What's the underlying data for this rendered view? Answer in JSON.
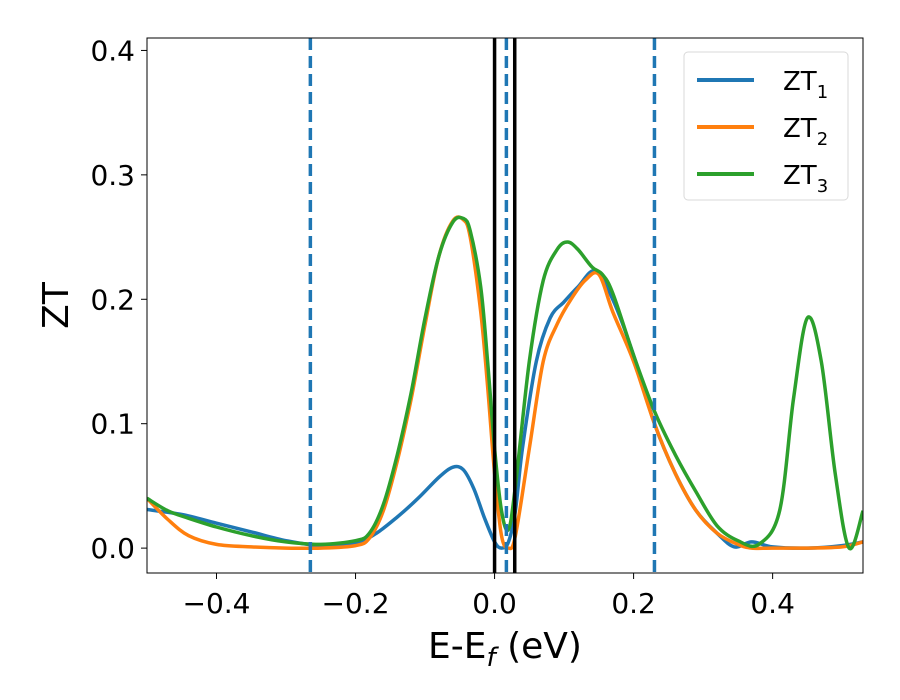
{
  "chart_data": {
    "type": "line",
    "xlabel": "E-E",
    "xlabel_sub": "f",
    "xlabel_unit": " (eV)",
    "ylabel": "ZT",
    "xlim": [
      -0.5,
      0.53
    ],
    "ylim": [
      -0.02,
      0.41
    ],
    "xticks": [
      -0.4,
      -0.2,
      0.0,
      0.2,
      0.4
    ],
    "xtick_labels": [
      "−0.4",
      "−0.2",
      "0.0",
      "0.2",
      "0.4"
    ],
    "yticks": [
      0.0,
      0.1,
      0.2,
      0.3,
      0.4
    ],
    "ytick_labels": [
      "0.0",
      "0.1",
      "0.2",
      "0.3",
      "0.4"
    ],
    "grid": false,
    "legend_position": "top-right",
    "vlines_solid": [
      0.0,
      0.029
    ],
    "vlines_dashed": [
      -0.265,
      0.017,
      0.23
    ],
    "colors": {
      "solid_vline": "#000000",
      "dashed_vline": "#1f77b4"
    },
    "series": [
      {
        "name": "ZT",
        "subscript": "1",
        "color": "#1f77b4",
        "x": [
          -0.5,
          -0.45,
          -0.4,
          -0.35,
          -0.3,
          -0.25,
          -0.2,
          -0.17,
          -0.14,
          -0.11,
          -0.08,
          -0.06,
          -0.045,
          -0.03,
          -0.015,
          0.0,
          0.01,
          0.02,
          0.03,
          0.04,
          0.06,
          0.08,
          0.1,
          0.12,
          0.145,
          0.17,
          0.2,
          0.23,
          0.26,
          0.29,
          0.32,
          0.345,
          0.37,
          0.4,
          0.45,
          0.5,
          0.53
        ],
        "y": [
          0.031,
          0.027,
          0.02,
          0.013,
          0.006,
          0.002,
          0.004,
          0.012,
          0.025,
          0.04,
          0.057,
          0.065,
          0.063,
          0.048,
          0.025,
          0.005,
          0.0,
          0.005,
          0.03,
          0.08,
          0.15,
          0.185,
          0.198,
          0.21,
          0.223,
          0.2,
          0.155,
          0.1,
          0.06,
          0.03,
          0.012,
          0.001,
          0.005,
          0.001,
          0.0,
          0.002,
          0.005
        ]
      },
      {
        "name": "ZT",
        "subscript": "2",
        "color": "#ff7f0e",
        "x": [
          -0.5,
          -0.47,
          -0.44,
          -0.4,
          -0.35,
          -0.3,
          -0.25,
          -0.2,
          -0.18,
          -0.16,
          -0.14,
          -0.12,
          -0.1,
          -0.08,
          -0.06,
          -0.045,
          -0.035,
          -0.02,
          -0.01,
          0.0,
          0.01,
          0.02,
          0.03,
          0.05,
          0.07,
          0.09,
          0.11,
          0.13,
          0.15,
          0.17,
          0.2,
          0.23,
          0.26,
          0.29,
          0.32,
          0.35,
          0.37,
          0.4,
          0.45,
          0.5,
          0.53
        ],
        "y": [
          0.04,
          0.023,
          0.01,
          0.003,
          0.001,
          0.0,
          0.0,
          0.002,
          0.008,
          0.03,
          0.07,
          0.12,
          0.18,
          0.235,
          0.263,
          0.264,
          0.25,
          0.19,
          0.13,
          0.06,
          0.01,
          0.0,
          0.01,
          0.08,
          0.15,
          0.18,
          0.2,
          0.215,
          0.22,
          0.19,
          0.15,
          0.1,
          0.06,
          0.03,
          0.012,
          0.003,
          0.0,
          0.0,
          0.0,
          0.001,
          0.005
        ]
      },
      {
        "name": "ZT",
        "subscript": "3",
        "color": "#2ca02c",
        "x": [
          -0.5,
          -0.47,
          -0.44,
          -0.4,
          -0.35,
          -0.3,
          -0.25,
          -0.2,
          -0.18,
          -0.16,
          -0.14,
          -0.12,
          -0.1,
          -0.08,
          -0.06,
          -0.045,
          -0.035,
          -0.02,
          -0.01,
          0.0,
          0.01,
          0.02,
          0.03,
          0.05,
          0.07,
          0.09,
          0.105,
          0.12,
          0.14,
          0.155,
          0.17,
          0.2,
          0.23,
          0.26,
          0.29,
          0.32,
          0.35,
          0.38,
          0.41,
          0.43,
          0.45,
          0.47,
          0.49,
          0.51,
          0.53
        ],
        "y": [
          0.04,
          0.03,
          0.024,
          0.017,
          0.01,
          0.005,
          0.003,
          0.006,
          0.012,
          0.035,
          0.075,
          0.125,
          0.185,
          0.235,
          0.262,
          0.265,
          0.255,
          0.21,
          0.15,
          0.08,
          0.03,
          0.015,
          0.05,
          0.15,
          0.215,
          0.24,
          0.246,
          0.24,
          0.226,
          0.22,
          0.205,
          0.155,
          0.11,
          0.075,
          0.045,
          0.018,
          0.006,
          0.003,
          0.03,
          0.12,
          0.185,
          0.15,
          0.06,
          0.0,
          0.03
        ]
      }
    ]
  }
}
